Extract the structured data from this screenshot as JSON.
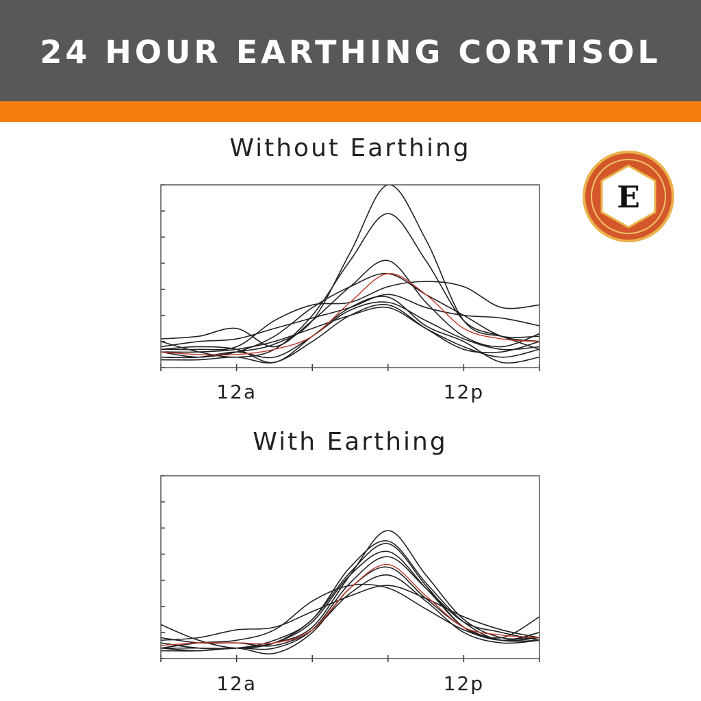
{
  "header": {
    "title": "24 HOUR EARTHING CORTISOL"
  },
  "logo": {
    "letter": "E"
  },
  "chart_data": [
    {
      "type": "line",
      "title": "Without Earthing",
      "categories": [
        null,
        null,
        "12a",
        null,
        null,
        null,
        null,
        null,
        "12p",
        null,
        null
      ],
      "ylim": [
        0,
        7
      ],
      "yticks": [
        0,
        1,
        2,
        3,
        4,
        5,
        6,
        7
      ],
      "series": [
        {
          "color": "#222222",
          "values": [
            0.6,
            0.4,
            0.6,
            0.9,
            1.8,
            4.4,
            7.0,
            4.9,
            1.8,
            1.2,
            1.2
          ]
        },
        {
          "color": "#222222",
          "values": [
            1.0,
            0.6,
            0.4,
            0.7,
            2.0,
            4.1,
            5.9,
            4.1,
            1.8,
            1.2,
            0.7
          ]
        },
        {
          "color": "#222222",
          "values": [
            1.1,
            1.2,
            1.5,
            0.8,
            1.8,
            3.1,
            4.1,
            2.5,
            1.2,
            0.8,
            1.3
          ]
        },
        {
          "color": "#222222",
          "values": [
            0.4,
            0.4,
            0.6,
            1.2,
            2.3,
            3.1,
            3.6,
            2.8,
            2.0,
            1.2,
            1.0
          ]
        },
        {
          "color": "#222222",
          "values": [
            0.7,
            0.7,
            0.8,
            1.8,
            2.4,
            2.5,
            3.1,
            3.3,
            3.1,
            2.3,
            2.4
          ]
        },
        {
          "color": "#222222",
          "values": [
            0.8,
            1.0,
            1.1,
            1.5,
            1.9,
            2.3,
            2.8,
            2.3,
            2.0,
            1.9,
            1.6
          ]
        },
        {
          "color": "#222222",
          "values": [
            0.4,
            0.4,
            0.6,
            0.4,
            1.2,
            2.2,
            2.5,
            1.8,
            1.1,
            0.7,
            0.8
          ]
        },
        {
          "color": "#222222",
          "values": [
            0.3,
            0.3,
            0.4,
            0.2,
            1.0,
            2.0,
            2.4,
            1.5,
            0.7,
            0.6,
            1.0
          ]
        },
        {
          "color": "#222222",
          "values": [
            0.6,
            0.6,
            0.7,
            1.0,
            1.5,
            2.0,
            2.3,
            1.5,
            0.8,
            0.4,
            0.7
          ]
        },
        {
          "color": "#222222",
          "values": [
            0.7,
            0.8,
            0.7,
            0.2,
            1.2,
            2.3,
            2.7,
            1.6,
            1.0,
            0.2,
            0.4
          ]
        },
        {
          "color": "#c0392b",
          "values": [
            0.6,
            0.5,
            0.5,
            0.7,
            1.2,
            2.5,
            3.6,
            2.8,
            1.5,
            1.1,
            1.0
          ]
        }
      ]
    },
    {
      "type": "line",
      "title": "With Earthing",
      "categories": [
        null,
        null,
        "12a",
        null,
        null,
        null,
        null,
        null,
        "12p",
        null,
        null
      ],
      "ylim": [
        0,
        7
      ],
      "yticks": [
        0,
        1,
        2,
        3,
        4,
        5,
        6,
        7
      ],
      "series": [
        {
          "color": "#222222",
          "values": [
            0.4,
            0.4,
            0.4,
            0.6,
            1.2,
            3.2,
            4.9,
            3.2,
            1.5,
            0.8,
            0.8
          ]
        },
        {
          "color": "#222222",
          "values": [
            0.6,
            0.4,
            0.4,
            0.7,
            1.5,
            3.5,
            4.5,
            2.9,
            1.4,
            0.7,
            1.0
          ]
        },
        {
          "color": "#222222",
          "values": [
            1.3,
            0.7,
            0.4,
            0.6,
            1.4,
            3.2,
            4.1,
            2.7,
            1.2,
            0.7,
            0.7
          ]
        },
        {
          "color": "#222222",
          "values": [
            0.7,
            0.8,
            1.1,
            1.2,
            1.8,
            2.4,
            2.8,
            2.3,
            1.6,
            1.1,
            0.8
          ]
        },
        {
          "color": "#222222",
          "values": [
            0.4,
            0.6,
            0.7,
            1.1,
            2.2,
            2.8,
            2.7,
            1.9,
            1.1,
            0.7,
            1.0
          ]
        },
        {
          "color": "#222222",
          "values": [
            0.3,
            0.3,
            0.4,
            0.4,
            1.1,
            2.9,
            3.9,
            2.7,
            1.4,
            1.0,
            0.7
          ]
        },
        {
          "color": "#222222",
          "values": [
            0.4,
            0.3,
            0.4,
            0.2,
            1.0,
            2.7,
            3.5,
            2.3,
            1.2,
            0.8,
            1.6
          ]
        },
        {
          "color": "#222222",
          "values": [
            0.8,
            0.6,
            0.6,
            0.5,
            1.1,
            2.5,
            3.2,
            2.2,
            1.0,
            0.6,
            0.7
          ]
        },
        {
          "color": "#222222",
          "values": [
            0.6,
            0.4,
            0.4,
            0.6,
            1.5,
            3.3,
            4.4,
            2.8,
            1.2,
            0.7,
            0.8
          ]
        },
        {
          "color": "#c0392b",
          "values": [
            0.5,
            0.6,
            0.6,
            0.6,
            1.1,
            2.7,
            3.6,
            2.4,
            1.2,
            0.9,
            0.8
          ]
        }
      ]
    }
  ]
}
